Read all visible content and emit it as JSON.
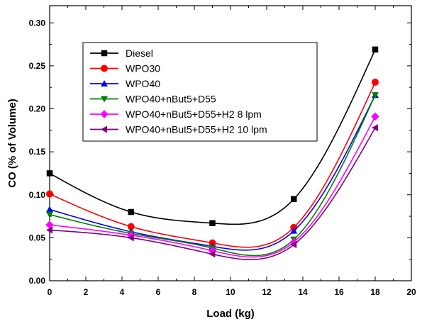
{
  "chart_data": {
    "type": "line",
    "title": "",
    "xlabel": "Load (kg)",
    "ylabel": "CO (% of Volume)",
    "xlim": [
      0,
      20
    ],
    "ylim": [
      0.0,
      0.32
    ],
    "xticks": [
      0,
      2,
      4,
      6,
      8,
      10,
      12,
      14,
      16,
      18,
      20
    ],
    "yticks": [
      0.0,
      0.05,
      0.1,
      0.15,
      0.2,
      0.25,
      0.3
    ],
    "xtick_labels": [
      "0",
      "2",
      "4",
      "6",
      "8",
      "10",
      "12",
      "14",
      "16",
      "18",
      "20"
    ],
    "ytick_labels": [
      "0.00",
      "0.05",
      "0.10",
      "0.15",
      "0.20",
      "0.25",
      "0.30"
    ],
    "grid": false,
    "legend_position": "top-left",
    "x": [
      0,
      4.5,
      9,
      13.5,
      18
    ],
    "series": [
      {
        "name": "Diesel",
        "color": "#000000",
        "marker": "square",
        "values": [
          0.125,
          0.08,
          0.067,
          0.095,
          0.269
        ]
      },
      {
        "name": "WPO30",
        "color": "#ff0000",
        "marker": "circle",
        "values": [
          0.101,
          0.063,
          0.044,
          0.062,
          0.231
        ]
      },
      {
        "name": "WPO40",
        "color": "#0000ff",
        "marker": "triangle-up",
        "values": [
          0.083,
          0.057,
          0.04,
          0.058,
          0.216
        ]
      },
      {
        "name": "WPO40+nBut5+D55",
        "color": "#008000",
        "marker": "triangle-down",
        "values": [
          0.077,
          0.055,
          0.038,
          0.048,
          0.216
        ]
      },
      {
        "name": "WPO40+nBut5+D55+H2 8 lpm",
        "color": "#ff00ff",
        "marker": "diamond",
        "values": [
          0.065,
          0.053,
          0.035,
          0.045,
          0.191
        ]
      },
      {
        "name": "WPO40+nBut5+D55+H2 10 lpm",
        "color": "#800080",
        "marker": "triangle-left",
        "values": [
          0.059,
          0.05,
          0.031,
          0.042,
          0.178
        ]
      }
    ]
  }
}
